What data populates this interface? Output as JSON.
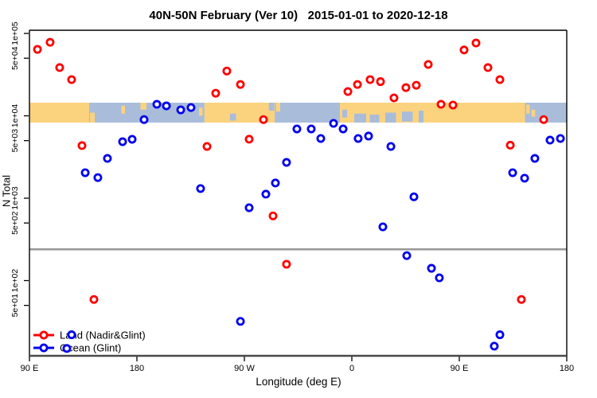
{
  "title": "40N-50N February (Ver 10)   2015-01-01 to 2020-12-18",
  "legend": {
    "items": [
      {
        "label": "Land (Nadir&Glint)",
        "color": "#ff0000"
      },
      {
        "label": "Ocean (Glint)",
        "color": "#0000ee"
      }
    ]
  },
  "chart_data": {
    "type": "scatter",
    "title": "40N-50N February (Ver 10)   2015-01-01 to 2020-12-18",
    "xlabel": "Longitude (deg E)",
    "ylabel": "N Total",
    "x_axis": {
      "range_deg_e": [
        90,
        540
      ],
      "ticks": [
        {
          "lon": 90,
          "label": "90 E"
        },
        {
          "lon": 180,
          "label": "180"
        },
        {
          "lon": 270,
          "label": "90 W"
        },
        {
          "lon": 360,
          "label": "0"
        },
        {
          "lon": 450,
          "label": "90 E"
        },
        {
          "lon": 540,
          "label": "180"
        }
      ]
    },
    "y_axis": {
      "scale": "log",
      "range": [
        13,
        110000
      ],
      "ticks": [
        {
          "value": 100000,
          "label": "1e+05"
        },
        {
          "value": 50000,
          "label": "5e+04"
        },
        {
          "value": 10000,
          "label": "1e+04"
        },
        {
          "value": 5000,
          "label": "5e+03"
        },
        {
          "value": 1000,
          "label": "1e+03"
        },
        {
          "value": 500,
          "label": "5e+02"
        },
        {
          "value": 100,
          "label": "1e+02"
        },
        {
          "value": 50,
          "label": "5e+01"
        }
      ]
    },
    "reference_line": {
      "value": 240,
      "color": "#999999"
    },
    "map_band": {
      "center_value": 10000,
      "land_color": "#fbd27e",
      "ocean_color": "#a9bdda",
      "ocean_extent_lon": [
        90,
        540
      ],
      "land_segments_lon": [
        [
          90,
          140
        ],
        [
          236.5,
          295.5
        ],
        [
          350,
          505
        ]
      ],
      "islands": [
        [
          140.7,
          144.7,
          0.5,
          1.0
        ],
        [
          167,
          170,
          0.15,
          0.55
        ],
        [
          183,
          188,
          0.0,
          0.35
        ],
        [
          232,
          235,
          0.25,
          0.65
        ],
        [
          296.5,
          300,
          0.0,
          0.45
        ],
        [
          506,
          509,
          0.1,
          0.55
        ],
        [
          510.5,
          513.5,
          0.35,
          0.7
        ]
      ],
      "sea_notches": [
        [
          258,
          263,
          0.55,
          0.9
        ],
        [
          290.5,
          295,
          0.0,
          0.4
        ],
        [
          352,
          356,
          0.35,
          0.75
        ],
        [
          362,
          372,
          0.55,
          1.0
        ],
        [
          375,
          383,
          0.6,
          1.0
        ],
        [
          388,
          397,
          0.5,
          1.0
        ],
        [
          402,
          411,
          0.45,
          0.95
        ],
        [
          416,
          420,
          0.4,
          1.0
        ]
      ]
    },
    "series": [
      {
        "name": "Land (Nadir&Glint)",
        "color": "#ff0000",
        "points": [
          {
            "lon": 96.7,
            "n": 64000
          },
          {
            "lon": 107.3,
            "n": 78000
          },
          {
            "lon": 115.3,
            "n": 38500
          },
          {
            "lon": 125.3,
            "n": 27500
          },
          {
            "lon": 134.0,
            "n": 4350
          },
          {
            "lon": 144.0,
            "n": 59
          },
          {
            "lon": 238.7,
            "n": 4250
          },
          {
            "lon": 246.0,
            "n": 18800
          },
          {
            "lon": 255.3,
            "n": 35000
          },
          {
            "lon": 266.7,
            "n": 24000
          },
          {
            "lon": 274.0,
            "n": 5200
          },
          {
            "lon": 286.0,
            "n": 9000
          },
          {
            "lon": 294.0,
            "n": 610
          },
          {
            "lon": 305.3,
            "n": 158
          },
          {
            "lon": 356.7,
            "n": 19700
          },
          {
            "lon": 364.7,
            "n": 24000
          },
          {
            "lon": 375.3,
            "n": 27500
          },
          {
            "lon": 384.0,
            "n": 26000
          },
          {
            "lon": 395.3,
            "n": 16500
          },
          {
            "lon": 405.3,
            "n": 22000
          },
          {
            "lon": 414.0,
            "n": 23500
          },
          {
            "lon": 424.0,
            "n": 42000
          },
          {
            "lon": 434.7,
            "n": 13800
          },
          {
            "lon": 444.7,
            "n": 13500
          },
          {
            "lon": 454.0,
            "n": 63000
          },
          {
            "lon": 464.0,
            "n": 76500
          },
          {
            "lon": 474.0,
            "n": 38500
          },
          {
            "lon": 484.0,
            "n": 27500
          },
          {
            "lon": 492.7,
            "n": 4400
          },
          {
            "lon": 502.0,
            "n": 59
          },
          {
            "lon": 520.7,
            "n": 9000
          }
        ]
      },
      {
        "name": "Ocean (Glint)",
        "color": "#0000ee",
        "points": [
          {
            "lon": 121.3,
            "n": 15
          },
          {
            "lon": 125.3,
            "n": 22
          },
          {
            "lon": 136.7,
            "n": 2040
          },
          {
            "lon": 147.3,
            "n": 1780
          },
          {
            "lon": 155.3,
            "n": 3040
          },
          {
            "lon": 168.0,
            "n": 4850
          },
          {
            "lon": 176.0,
            "n": 5190
          },
          {
            "lon": 186.0,
            "n": 9000
          },
          {
            "lon": 196.7,
            "n": 13800
          },
          {
            "lon": 204.7,
            "n": 13200
          },
          {
            "lon": 216.7,
            "n": 11800
          },
          {
            "lon": 225.3,
            "n": 12600
          },
          {
            "lon": 233.3,
            "n": 1310
          },
          {
            "lon": 266.7,
            "n": 32
          },
          {
            "lon": 274.0,
            "n": 766
          },
          {
            "lon": 288.0,
            "n": 1120
          },
          {
            "lon": 296.0,
            "n": 1530
          },
          {
            "lon": 305.3,
            "n": 2720
          },
          {
            "lon": 314.0,
            "n": 6930
          },
          {
            "lon": 326.0,
            "n": 6930
          },
          {
            "lon": 334.0,
            "n": 5310
          },
          {
            "lon": 344.7,
            "n": 8100
          },
          {
            "lon": 352.7,
            "n": 6930
          },
          {
            "lon": 365.3,
            "n": 5310
          },
          {
            "lon": 374.0,
            "n": 5680
          },
          {
            "lon": 386.0,
            "n": 449
          },
          {
            "lon": 392.7,
            "n": 4250
          },
          {
            "lon": 406.0,
            "n": 201
          },
          {
            "lon": 412.0,
            "n": 1040
          },
          {
            "lon": 426.7,
            "n": 141
          },
          {
            "lon": 433.3,
            "n": 108
          },
          {
            "lon": 479.3,
            "n": 16
          },
          {
            "lon": 484.0,
            "n": 22
          },
          {
            "lon": 494.7,
            "n": 2040
          },
          {
            "lon": 504.7,
            "n": 1750
          },
          {
            "lon": 513.3,
            "n": 3040
          },
          {
            "lon": 526.0,
            "n": 5070
          },
          {
            "lon": 534.7,
            "n": 5310
          }
        ]
      }
    ]
  }
}
